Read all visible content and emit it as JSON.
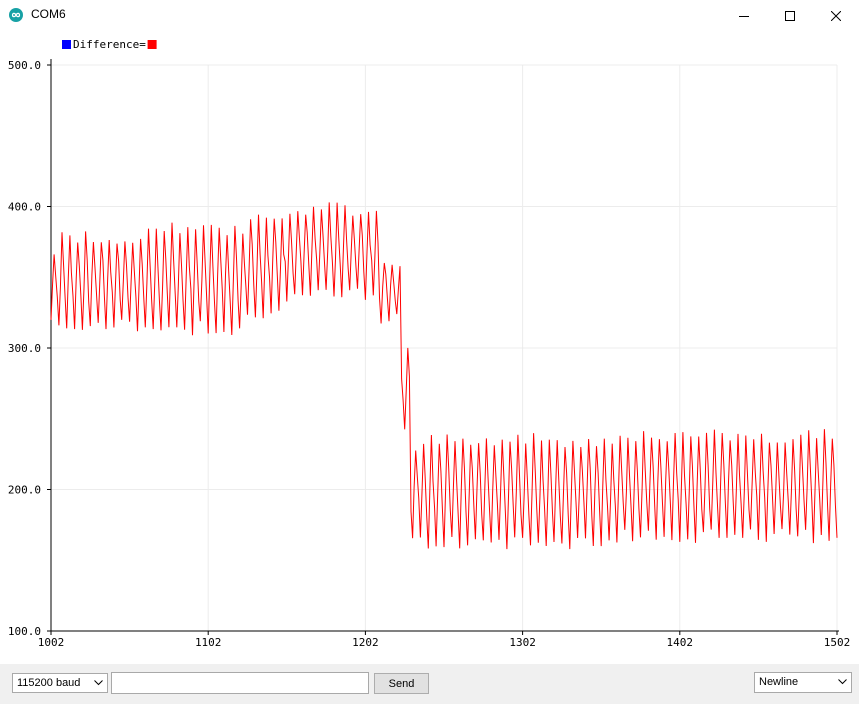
{
  "window": {
    "title": "COM6",
    "app_icon": "arduino-infinity-icon",
    "controls": [
      "minimize-icon",
      "maximize-icon",
      "close-icon"
    ]
  },
  "bottom_bar": {
    "baud_rate": "115200 baud",
    "message_value": "",
    "send_label": "Send",
    "line_ending": "Newline"
  },
  "chart_data": {
    "type": "line",
    "title": "",
    "xlabel": "",
    "ylabel": "",
    "legend": [
      {
        "label": "Difference=",
        "color": "#0000ff"
      },
      {
        "label": "",
        "color": "#ff0000"
      }
    ],
    "legend_placement": "top-left",
    "grid": true,
    "xlim": [
      1002,
      1502
    ],
    "ylim": [
      100.0,
      500.0
    ],
    "x_ticks": [
      "1002",
      "1102",
      "1202",
      "1302",
      "1402",
      "1502"
    ],
    "y_ticks": [
      "100.0",
      "200.0",
      "300.0",
      "400.0",
      "500.0"
    ],
    "series": [
      {
        "color": "#ff0000",
        "x_start": 1002,
        "x_step": 1,
        "segments": [
          {
            "from": 1002,
            "to": 1005,
            "low": 320,
            "high": 370
          },
          {
            "from": 1005,
            "to": 1060,
            "low": 316,
            "high": 378
          },
          {
            "from": 1060,
            "to": 1080,
            "low": 310,
            "high": 385
          },
          {
            "from": 1080,
            "to": 1125,
            "low": 314,
            "high": 383
          },
          {
            "from": 1125,
            "to": 1150,
            "low": 325,
            "high": 393
          },
          {
            "from": 1150,
            "to": 1210,
            "low": 337,
            "high": 398
          },
          {
            "from": 1210,
            "to": 1224,
            "low": 320,
            "high": 362
          },
          {
            "from": 1224,
            "to": 1230,
            "low": 245,
            "high": 300
          },
          {
            "from": 1230,
            "to": 1238,
            "low": 170,
            "high": 228
          },
          {
            "from": 1238,
            "to": 1360,
            "low": 162,
            "high": 235
          },
          {
            "from": 1360,
            "to": 1502,
            "low": 167,
            "high": 238
          }
        ],
        "period": 5
      }
    ]
  }
}
